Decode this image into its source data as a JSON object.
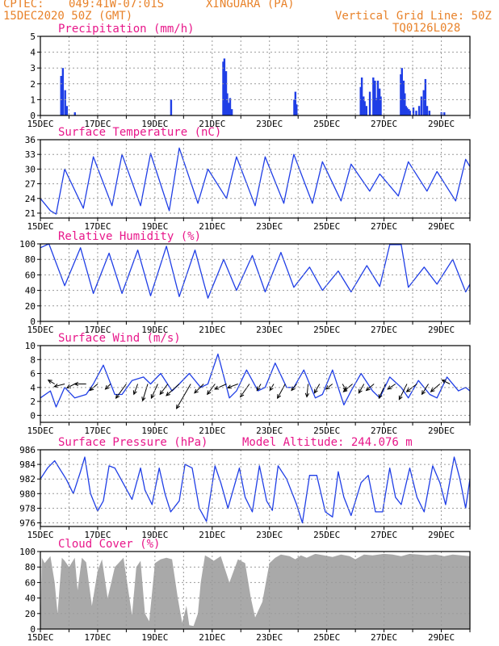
{
  "header": {
    "center": "CPTEC:",
    "coords": "049:41W-07:01S",
    "location": "XINGUARA (PA)",
    "date": "15DEC2020 50Z (GMT)",
    "grid_note": "Vertical Grid Line: 50Z",
    "model": "TQ0126L028",
    "altitude_label": "Model Altitude: 244.076 m"
  },
  "x_ticks": [
    "15DEC",
    "17DEC",
    "19DEC",
    "21DEC",
    "23DEC",
    "25DEC",
    "27DEC",
    "29DEC"
  ],
  "colors": {
    "title": "#e8178a",
    "header": "#e8822a",
    "line": "#1f3ee6",
    "fill": "#a9a9a9",
    "grid": "#9a9a9a"
  },
  "chart_data": [
    {
      "id": "precip",
      "type": "bar",
      "title": "Precipitation (mm/h)",
      "xlabel": "",
      "ylabel": "",
      "x_range": [
        0,
        15
      ],
      "ylim": [
        0,
        5
      ],
      "yticks": [
        0,
        1,
        2,
        3,
        4,
        5
      ],
      "x": [
        0.72,
        0.78,
        0.86,
        0.92,
        1.2,
        4.56,
        6.38,
        6.42,
        6.48,
        6.52,
        6.58,
        6.62,
        6.68,
        8.86,
        8.9,
        8.94,
        11.18,
        11.22,
        11.28,
        11.32,
        11.38,
        11.5,
        11.62,
        11.68,
        11.72,
        11.78,
        11.84,
        11.88,
        12.58,
        12.62,
        12.68,
        12.72,
        12.76,
        12.8,
        12.86,
        12.9,
        13.02,
        13.12,
        13.22,
        13.3,
        13.38,
        13.44,
        13.5,
        13.58,
        14.0,
        14.1
      ],
      "values": [
        2.5,
        3.0,
        1.6,
        0.6,
        0.2,
        1.0,
        3.4,
        3.6,
        2.8,
        1.4,
        0.8,
        1.1,
        0.4,
        1.0,
        1.5,
        0.7,
        1.8,
        2.4,
        1.2,
        0.9,
        0.6,
        1.5,
        2.4,
        2.2,
        1.1,
        2.2,
        1.7,
        1.2,
        2.6,
        3.0,
        2.2,
        1.4,
        0.6,
        0.5,
        0.4,
        0.3,
        0.5,
        0.3,
        0.6,
        1.2,
        1.6,
        2.3,
        0.6,
        0.3,
        0.2,
        0.2
      ]
    },
    {
      "id": "temp",
      "type": "line",
      "title": "Surface Temperature (nC)",
      "xlabel": "",
      "ylabel": "",
      "x_range": [
        0,
        15
      ],
      "ylim": [
        20,
        36
      ],
      "yticks": [
        21,
        24,
        27,
        30,
        33,
        36
      ],
      "x": [
        0,
        0.35,
        0.55,
        0.85,
        1.5,
        1.85,
        2.5,
        2.85,
        3.5,
        3.85,
        4.5,
        4.85,
        5.5,
        5.85,
        6.5,
        6.85,
        7.5,
        7.85,
        8.5,
        8.85,
        9.5,
        9.85,
        10.5,
        10.85,
        11.5,
        11.85,
        12.5,
        12.85,
        13.5,
        13.85,
        14.5,
        14.85,
        15
      ],
      "values": [
        24,
        21.5,
        20.8,
        30,
        22,
        32.5,
        22.5,
        33,
        22.5,
        33.2,
        21.5,
        34.3,
        23,
        30,
        24,
        32.5,
        22.5,
        32.5,
        23,
        33,
        23,
        31.5,
        23.5,
        31,
        25.5,
        29,
        24.5,
        31.5,
        25.5,
        29.5,
        23.5,
        32,
        30.5
      ]
    },
    {
      "id": "rh",
      "type": "line",
      "title": "Relative Humidity (%)",
      "xlabel": "",
      "ylabel": "",
      "x_range": [
        0,
        15
      ],
      "ylim": [
        0,
        100
      ],
      "yticks": [
        0,
        20,
        40,
        60,
        80,
        100
      ],
      "x": [
        0,
        0.3,
        0.85,
        1.4,
        1.85,
        2.4,
        2.85,
        3.4,
        3.85,
        4.4,
        4.85,
        5.4,
        5.85,
        6.4,
        6.85,
        7.4,
        7.85,
        8.4,
        8.85,
        9.4,
        9.85,
        10.4,
        10.85,
        11.4,
        11.85,
        12.2,
        12.6,
        12.85,
        13.4,
        13.85,
        14.4,
        14.85,
        15
      ],
      "values": [
        95,
        100,
        46,
        95,
        36,
        88,
        36,
        92,
        33,
        97,
        32,
        92,
        30,
        80,
        40,
        85,
        38,
        89,
        44,
        70,
        40,
        65,
        38,
        72,
        45,
        99,
        99,
        44,
        70,
        48,
        80,
        38,
        48
      ]
    },
    {
      "id": "wind",
      "type": "line",
      "title": "Surface Wind (m/s)",
      "xlabel": "",
      "ylabel": "",
      "x_range": [
        0,
        15
      ],
      "ylim": [
        -1,
        10
      ],
      "yticks": [
        0,
        2,
        4,
        6,
        8,
        10
      ],
      "x": [
        0,
        0.35,
        0.55,
        0.85,
        1.2,
        1.6,
        1.85,
        2.2,
        2.6,
        2.85,
        3.2,
        3.6,
        3.85,
        4.2,
        4.6,
        4.85,
        5.2,
        5.6,
        5.85,
        6.2,
        6.6,
        6.85,
        7.2,
        7.6,
        7.85,
        8.2,
        8.6,
        8.85,
        9.2,
        9.6,
        9.85,
        10.2,
        10.6,
        10.85,
        11.2,
        11.6,
        11.85,
        12.2,
        12.6,
        12.85,
        13.2,
        13.6,
        13.85,
        14.2,
        14.6,
        14.85,
        15
      ],
      "values": [
        2.5,
        3.5,
        1.2,
        4.0,
        2.5,
        3.0,
        4.5,
        7.2,
        3.0,
        3.0,
        5.0,
        5.5,
        4.5,
        6.0,
        3.5,
        4.5,
        6.0,
        4.0,
        4.5,
        8.8,
        2.5,
        3.5,
        6.5,
        3.5,
        4.0,
        7.5,
        4.0,
        4.0,
        6.5,
        2.5,
        3.0,
        6.5,
        1.5,
        3.5,
        6.0,
        3.5,
        2.5,
        5.5,
        4.0,
        2.5,
        5.0,
        3.0,
        2.5,
        5.5,
        3.5,
        4.0,
        3.5
      ],
      "vectors": {
        "x": [
          0.5,
          0.85,
          1.2,
          1.6,
          2.0,
          2.45,
          3.0,
          3.4,
          3.75,
          4.1,
          4.45,
          4.85,
          5.25,
          5.7,
          6.1,
          6.5,
          6.9,
          7.3,
          7.7,
          8.15,
          8.55,
          8.95,
          9.35,
          9.75,
          10.2,
          10.55,
          10.9,
          11.3,
          11.65,
          12.05,
          12.4,
          12.8,
          13.15,
          13.55,
          13.95,
          14.3
        ],
        "u": [
          -1.0,
          -1.6,
          -1.2,
          -1.8,
          -1.2,
          -0.8,
          -1.6,
          -0.6,
          -0.8,
          -1.0,
          -1.2,
          -2.0,
          -2.2,
          -1.4,
          -1.2,
          -1.8,
          -1.6,
          -1.4,
          -0.6,
          -0.6,
          -1.2,
          -0.8,
          -0.2,
          -0.8,
          -1.0,
          0.6,
          -1.4,
          -0.8,
          -1.2,
          -1.0,
          -1.2,
          -1.2,
          -1.6,
          -1.0,
          -1.4,
          -1.2
        ],
        "v": [
          0.6,
          -0.4,
          -0.6,
          0.0,
          -1.0,
          -0.8,
          -2.2,
          -1.6,
          -2.6,
          -2.2,
          -1.6,
          -1.8,
          -3.8,
          -1.4,
          -1.6,
          -0.8,
          -0.6,
          -2.0,
          -1.0,
          -1.0,
          -2.2,
          -1.0,
          -2.0,
          -1.4,
          -0.8,
          -1.0,
          -1.2,
          -1.4,
          -1.0,
          -2.2,
          -0.8,
          -2.4,
          -1.2,
          -1.6,
          -1.2,
          0.6
        ]
      }
    },
    {
      "id": "pres",
      "type": "line",
      "title": "Surface Pressure (hPa)",
      "xlabel": "",
      "ylabel": "",
      "x_range": [
        0,
        15
      ],
      "ylim": [
        975.5,
        986
      ],
      "yticks": [
        976,
        978,
        980,
        982,
        984,
        986
      ],
      "x": [
        0,
        0.25,
        0.5,
        0.9,
        1.15,
        1.4,
        1.55,
        1.75,
        2.0,
        2.2,
        2.4,
        2.6,
        2.95,
        3.2,
        3.5,
        3.65,
        3.9,
        4.15,
        4.35,
        4.55,
        4.85,
        5.05,
        5.3,
        5.55,
        5.8,
        6.1,
        6.3,
        6.55,
        6.95,
        7.15,
        7.4,
        7.65,
        7.9,
        8.1,
        8.3,
        8.6,
        8.95,
        9.15,
        9.4,
        9.65,
        9.95,
        10.2,
        10.4,
        10.6,
        10.85,
        11.2,
        11.45,
        11.7,
        11.95,
        12.2,
        12.4,
        12.6,
        12.9,
        13.15,
        13.4,
        13.7,
        13.95,
        14.15,
        14.45,
        14.65,
        14.85,
        15
      ],
      "values": [
        982,
        983.5,
        984.5,
        982,
        980,
        983,
        985,
        980,
        977.6,
        979,
        983.8,
        983.5,
        981,
        979.2,
        983.5,
        980.5,
        978.5,
        983.5,
        980,
        977.5,
        979,
        984,
        983.5,
        978,
        976.2,
        983.8,
        981.5,
        978,
        983.5,
        979.5,
        977.5,
        983.8,
        979,
        977.7,
        983.8,
        982,
        978.5,
        976,
        982.5,
        982.5,
        977.5,
        976.8,
        983,
        979.5,
        977,
        981.5,
        982.5,
        977.5,
        977.5,
        983.5,
        979.5,
        978.5,
        983.5,
        979.5,
        977.5,
        983.8,
        981.5,
        978.5,
        985,
        982,
        978,
        982
      ]
    },
    {
      "id": "cloud",
      "type": "area",
      "title": "Cloud Cover (%)",
      "xlabel": "",
      "ylabel": "",
      "x_range": [
        0,
        15
      ],
      "ylim": [
        0,
        100
      ],
      "yticks": [
        0,
        20,
        40,
        60,
        80,
        100
      ],
      "x": [
        0,
        0.05,
        0.15,
        0.35,
        0.5,
        0.6,
        0.75,
        0.85,
        1.0,
        1.2,
        1.3,
        1.45,
        1.6,
        1.8,
        2.0,
        2.15,
        2.35,
        2.6,
        2.9,
        3.2,
        3.35,
        3.5,
        3.65,
        3.8,
        4.0,
        4.2,
        4.4,
        4.6,
        4.8,
        4.95,
        5.1,
        5.2,
        5.35,
        5.5,
        5.6,
        5.75,
        5.9,
        6.05,
        6.3,
        6.6,
        6.9,
        7.15,
        7.35,
        7.5,
        7.75,
        8.0,
        8.2,
        8.4,
        8.7,
        8.9,
        9.1,
        9.3,
        9.6,
        9.9,
        10.2,
        10.5,
        10.8,
        11.0,
        11.3,
        11.6,
        12.0,
        12.3,
        12.6,
        12.9,
        13.2,
        13.5,
        13.8,
        14.1,
        14.4,
        14.7,
        15
      ],
      "values": [
        0,
        92,
        85,
        94,
        60,
        20,
        92,
        88,
        80,
        92,
        50,
        92,
        86,
        30,
        75,
        90,
        40,
        80,
        92,
        18,
        80,
        88,
        20,
        10,
        85,
        90,
        92,
        90,
        40,
        8,
        30,
        5,
        4,
        20,
        60,
        95,
        92,
        88,
        94,
        60,
        90,
        85,
        40,
        15,
        35,
        85,
        92,
        96,
        94,
        90,
        95,
        92,
        97,
        95,
        93,
        96,
        94,
        90,
        96,
        95,
        97,
        96,
        94,
        97,
        96,
        95,
        96,
        94,
        96,
        95,
        94
      ]
    }
  ]
}
